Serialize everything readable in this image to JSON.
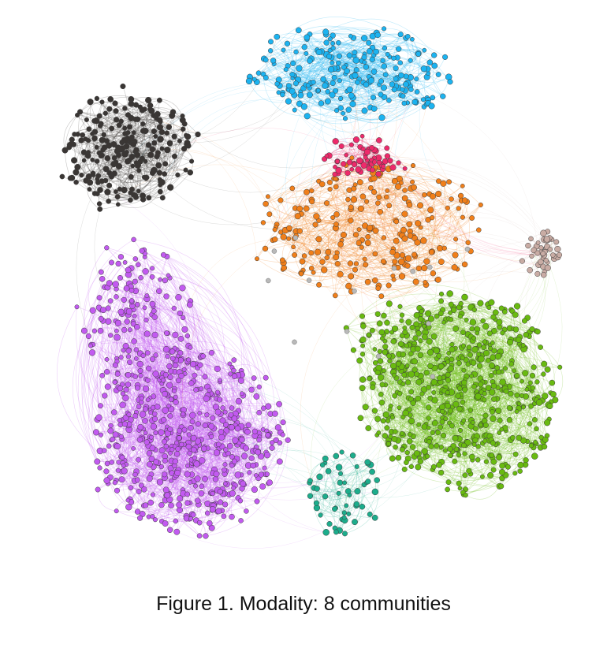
{
  "caption": "Figure 1.  Modality: 8 communities",
  "communities": [
    {
      "id": "black",
      "color": "#3a3634"
    },
    {
      "id": "blue",
      "color": "#1cb3f0"
    },
    {
      "id": "pink",
      "color": "#ee2a6b"
    },
    {
      "id": "orange",
      "color": "#f07f1a"
    },
    {
      "id": "taupe",
      "color": "#c9aca4"
    },
    {
      "id": "green",
      "color": "#69ba10"
    },
    {
      "id": "purple",
      "color": "#c25af0"
    },
    {
      "id": "teal",
      "color": "#1cad8c"
    }
  ]
}
